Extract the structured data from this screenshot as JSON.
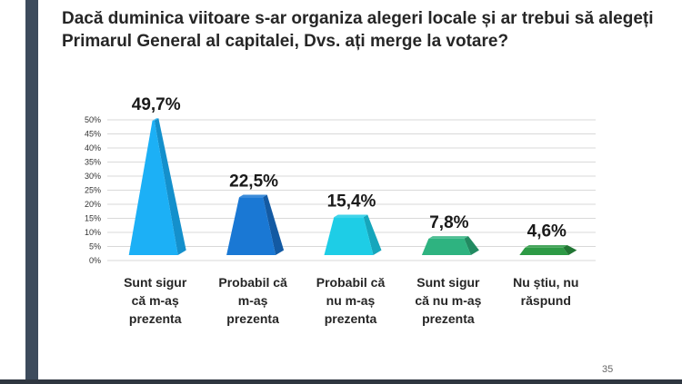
{
  "slide": {
    "title": "Dacă duminica viitoare s-ar organiza alegeri locale și ar trebui să alegeți Primarul General al capitalei, Dvs. ați merge la votare?",
    "page_number": "35"
  },
  "chart_data": {
    "type": "bar",
    "title": "Dacă duminica viitoare s-ar organiza alegeri locale și ar trebui să alegeți Primarul General al capitalei, Dvs. ați merge la votare?",
    "categories": [
      [
        "Sunt sigur",
        "că m-aș",
        "prezenta"
      ],
      [
        "Probabil că",
        "m-aș",
        "prezenta"
      ],
      [
        "Probabil că",
        "nu m-aș",
        "prezenta"
      ],
      [
        "Sunt sigur",
        "că nu m-aș",
        "prezenta"
      ],
      [
        "Nu știu, nu",
        "răspund"
      ]
    ],
    "values": [
      49.7,
      22.5,
      15.4,
      7.8,
      4.6
    ],
    "value_labels": [
      "49,7%",
      "22,5%",
      "15,4%",
      "7,8%",
      "4,6%"
    ],
    "y_ticks": [
      "0%",
      "5%",
      "10%",
      "15%",
      "20%",
      "25%",
      "30%",
      "35%",
      "40%",
      "45%",
      "50%"
    ],
    "ylim": [
      0,
      50
    ],
    "grid": true,
    "bar_colors": [
      "#1cb0f6",
      "#1a78d4",
      "#1ecde6",
      "#2eb380",
      "#2d9a45"
    ],
    "bar_shade_colors": [
      "#1490cc",
      "#135aa3",
      "#16a6bc",
      "#228a61",
      "#217533"
    ],
    "shape": "3d-pyramid"
  }
}
